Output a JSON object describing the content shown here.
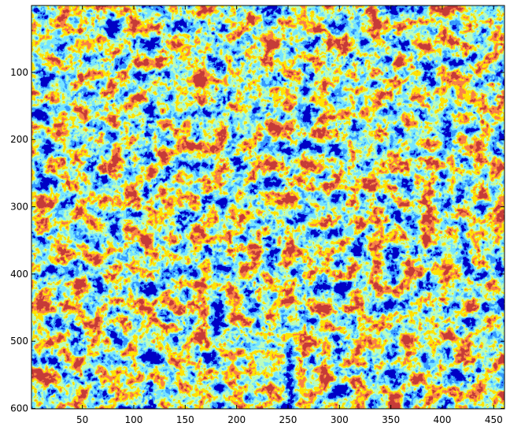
{
  "chart_data": {
    "type": "heatmap",
    "title": "",
    "xlabel": "",
    "ylabel": "",
    "xlim": [
      0.5,
      460.5
    ],
    "ylim": [
      0.5,
      600.5
    ],
    "y_reversed": true,
    "xticks": [
      50,
      100,
      150,
      200,
      250,
      300,
      350,
      400,
      450
    ],
    "yticks": [
      100,
      200,
      300,
      400,
      500,
      600
    ],
    "grid": false,
    "colorbar": false,
    "colormap": [
      "#00008f",
      "#0a51ff",
      "#2fc9ff",
      "#7ffc7f",
      "#ffc400",
      "#f03a10",
      "#8f0c0b"
    ],
    "image": "quantized label map of a crowd scene, approximately 7 colour classes, 460 x 600 pixels"
  }
}
